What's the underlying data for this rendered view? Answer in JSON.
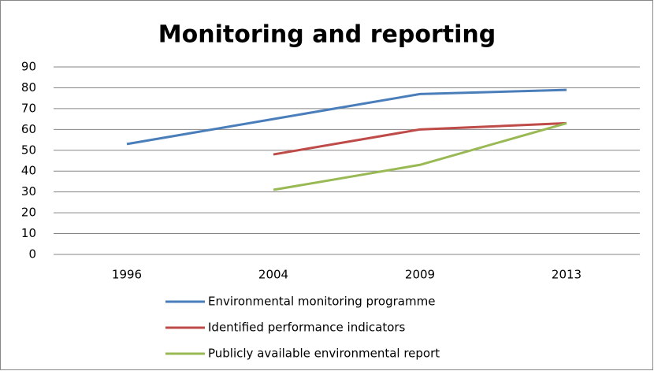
{
  "chart_data": {
    "type": "line",
    "title": "Monitoring and reporting",
    "categories": [
      "1996",
      "2004",
      "2009",
      "2013"
    ],
    "series": [
      {
        "name": "Environmental monitoring programme",
        "color": "#4a7ebb",
        "values": [
          53,
          65,
          77,
          79
        ]
      },
      {
        "name": "Identified performance indicators",
        "color": "#be4b48",
        "values": [
          null,
          48,
          60,
          63
        ]
      },
      {
        "name": "Publicly available environmental report",
        "color": "#98b954",
        "values": [
          null,
          31,
          43,
          63
        ]
      }
    ],
    "ylim": [
      0,
      90
    ],
    "yticks": [
      0,
      10,
      20,
      30,
      40,
      50,
      60,
      70,
      80,
      90
    ],
    "grid": true,
    "legend": "bottom"
  }
}
